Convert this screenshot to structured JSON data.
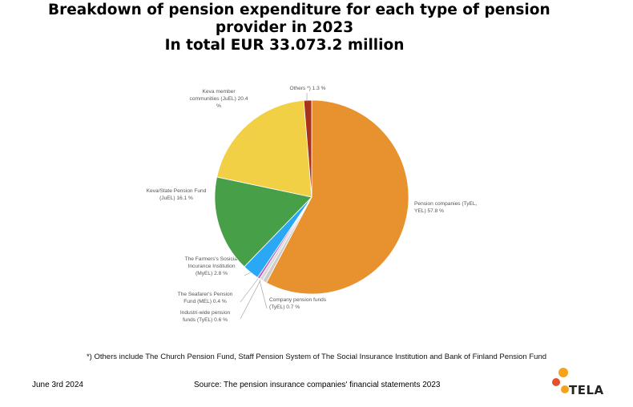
{
  "chart_data": {
    "type": "pie",
    "title": "Breakdown of pension expenditure for each type of pension provider in 2023",
    "subtitle": "In total EUR 33.073.2 million",
    "slices": [
      {
        "label_lines": [
          "Pension companies (TyEL,",
          "YEL) 57.8 %"
        ],
        "value": 57.8,
        "color": "#E8922F"
      },
      {
        "label_lines": [
          "Company pension funds",
          "(TyEL) 0.7 %"
        ],
        "value": 0.7,
        "color": "#CCCCCC"
      },
      {
        "label_lines": [
          "Industri-wide pension",
          "funds (TyEL) 0.6 %"
        ],
        "value": 0.6,
        "color": "#D9D9D9"
      },
      {
        "label_lines": [
          "The Seafarer's Pension",
          "Fund (MEL) 0.4 %"
        ],
        "value": 0.4,
        "color": "#C060C0"
      },
      {
        "label_lines": [
          "The Farmers's Sosicial",
          "Incurance Institution",
          "(MyEL) 2.8 %"
        ],
        "value": 2.8,
        "color": "#2BA8F5"
      },
      {
        "label_lines": [
          "Keva/State Pension Fund",
          "(JuEL) 16.1 %"
        ],
        "value": 16.1,
        "color": "#47A047"
      },
      {
        "label_lines": [
          "Keva member",
          "communities (JuEL) 20.4",
          "%"
        ],
        "value": 20.4,
        "color": "#F2D045"
      },
      {
        "label_lines": [
          "Others *) 1.3 %"
        ],
        "value": 1.3,
        "color": "#A8321A"
      }
    ]
  },
  "title_lines": [
    "Breakdown of pension expenditure for each type of pension",
    "provider in 2023",
    "In total EUR 33.073.2 million"
  ],
  "footnote": "*) Others include The Church Pension Fund, Staff Pension System of The Social Insurance Institution and Bank of Finland Pension Fund",
  "date": "June 3rd 2024",
  "source": "Source: The pension insurance companies' financial statements 2023",
  "logo": {
    "text": "TELA",
    "colors": [
      "#F7A21B",
      "#E4502A"
    ]
  }
}
